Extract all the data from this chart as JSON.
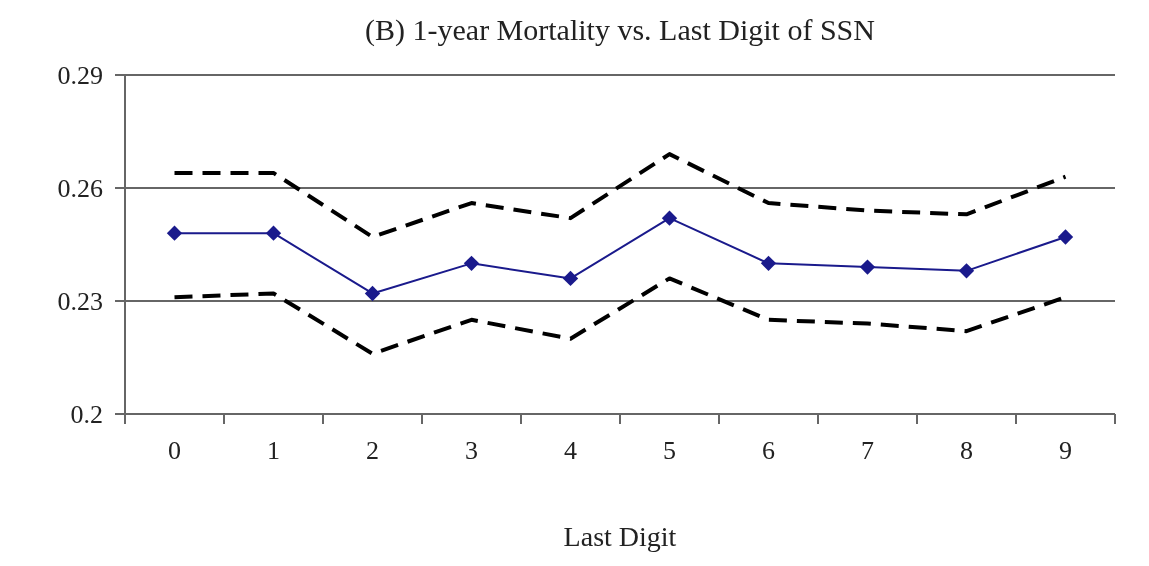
{
  "chart_data": {
    "type": "line",
    "title": "(B)  1-year Mortality vs. Last Digit of SSN",
    "xlabel": "Last Digit",
    "categories": [
      "0",
      "1",
      "2",
      "3",
      "4",
      "5",
      "6",
      "7",
      "8",
      "9"
    ],
    "series": [
      {
        "color": "#000000",
        "line_style": "dashed",
        "marker": "none",
        "values": [
          0.264,
          0.264,
          0.247,
          0.256,
          0.252,
          0.269,
          0.256,
          0.254,
          0.253,
          0.263
        ]
      },
      {
        "color": "#1a1a8c",
        "line_style": "solid",
        "marker": "diamond",
        "values": [
          0.248,
          0.248,
          0.232,
          0.24,
          0.236,
          0.252,
          0.24,
          0.239,
          0.238,
          0.247
        ]
      },
      {
        "color": "#000000",
        "line_style": "dashed",
        "marker": "none",
        "values": [
          0.231,
          0.232,
          0.216,
          0.225,
          0.22,
          0.236,
          0.225,
          0.224,
          0.222,
          0.231
        ]
      }
    ],
    "ylim": [
      0.2,
      0.29
    ],
    "yticks": [
      0.2,
      0.23,
      0.26,
      0.29
    ],
    "grid": "y"
  }
}
